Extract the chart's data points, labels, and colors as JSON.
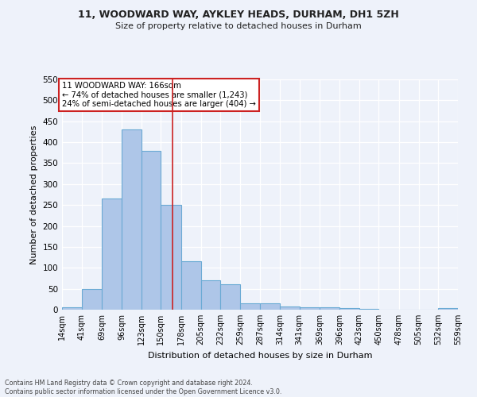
{
  "title1": "11, WOODWARD WAY, AYKLEY HEADS, DURHAM, DH1 5ZH",
  "title2": "Size of property relative to detached houses in Durham",
  "xlabel": "Distribution of detached houses by size in Durham",
  "ylabel": "Number of detached properties",
  "footer1": "Contains HM Land Registry data © Crown copyright and database right 2024.",
  "footer2": "Contains public sector information licensed under the Open Government Licence v3.0.",
  "bar_color": "#aec6e8",
  "bar_edge_color": "#6aaad4",
  "background_color": "#eef2fa",
  "grid_color": "#ffffff",
  "vline_value": 166,
  "vline_color": "#cc2222",
  "annotation_text": "11 WOODWARD WAY: 166sqm\n← 74% of detached houses are smaller (1,243)\n24% of semi-detached houses are larger (404) →",
  "annotation_box_color": "#ffffff",
  "annotation_box_edge": "#cc2222",
  "bins": [
    14,
    41,
    69,
    96,
    123,
    150,
    178,
    205,
    232,
    259,
    287,
    314,
    341,
    369,
    396,
    423,
    450,
    478,
    505,
    532,
    559
  ],
  "counts": [
    5,
    50,
    265,
    430,
    380,
    250,
    115,
    70,
    60,
    15,
    15,
    8,
    5,
    6,
    4,
    2,
    0,
    0,
    0,
    3
  ],
  "ylim": [
    0,
    550
  ],
  "yticks": [
    0,
    50,
    100,
    150,
    200,
    250,
    300,
    350,
    400,
    450,
    500,
    550
  ]
}
